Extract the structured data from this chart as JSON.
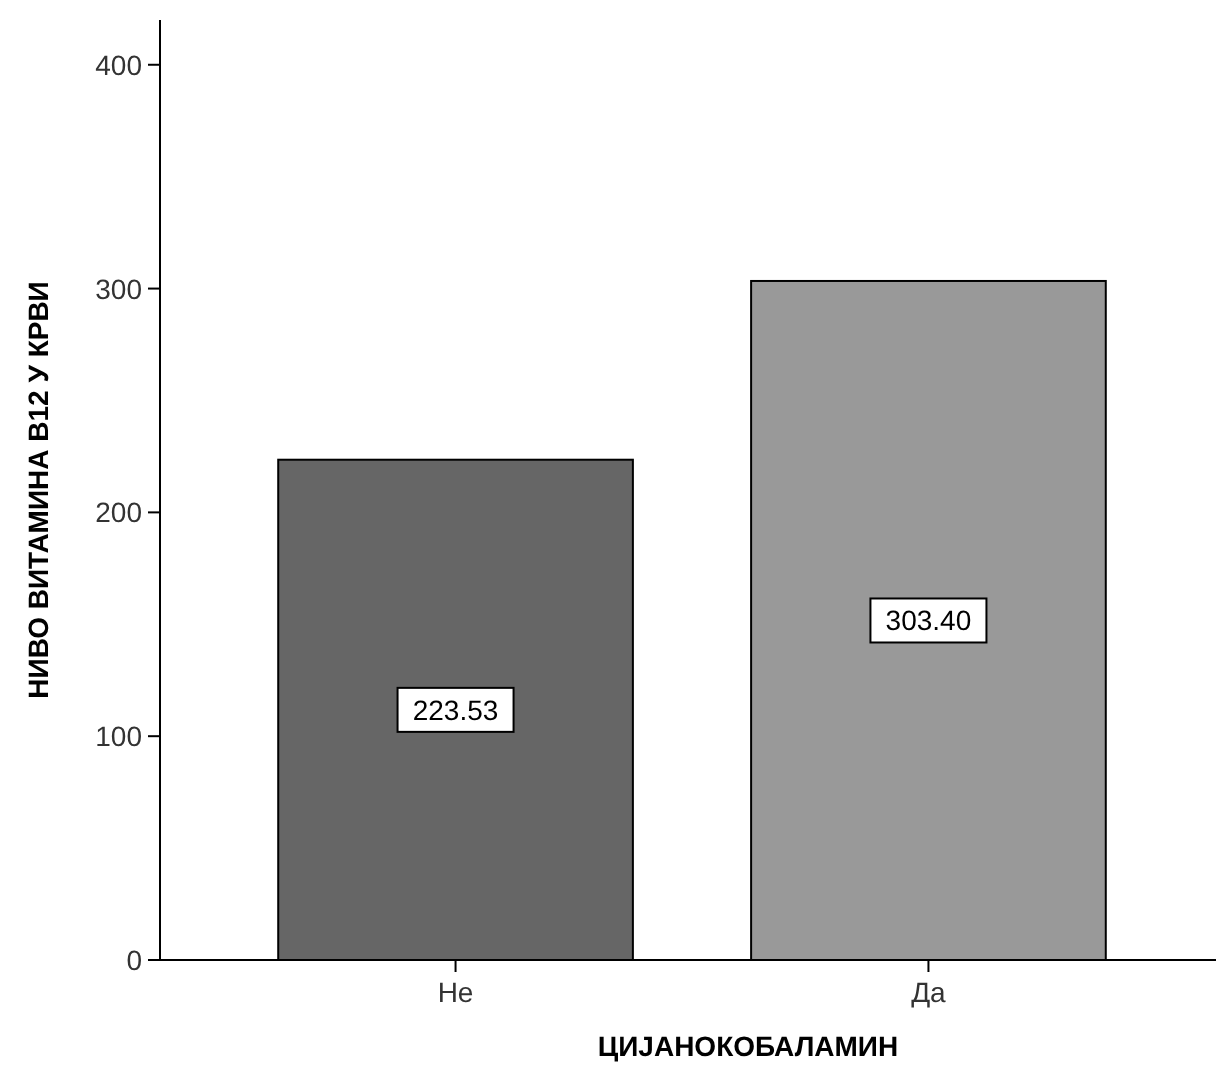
{
  "chart_data": {
    "type": "bar",
    "xlabel": "ЦИЈАНОКОБАЛАМИН",
    "ylabel": "НИВО ВИТАМИНА В12 У КРВИ",
    "categories": [
      "Не",
      "Да"
    ],
    "values": [
      223.53,
      303.4
    ],
    "colors": [
      "#666666",
      "#999999"
    ],
    "value_labels": [
      "223.53",
      "303.40"
    ],
    "ylim": [
      0,
      420
    ],
    "yticks": [
      0,
      100,
      200,
      300,
      400
    ]
  }
}
